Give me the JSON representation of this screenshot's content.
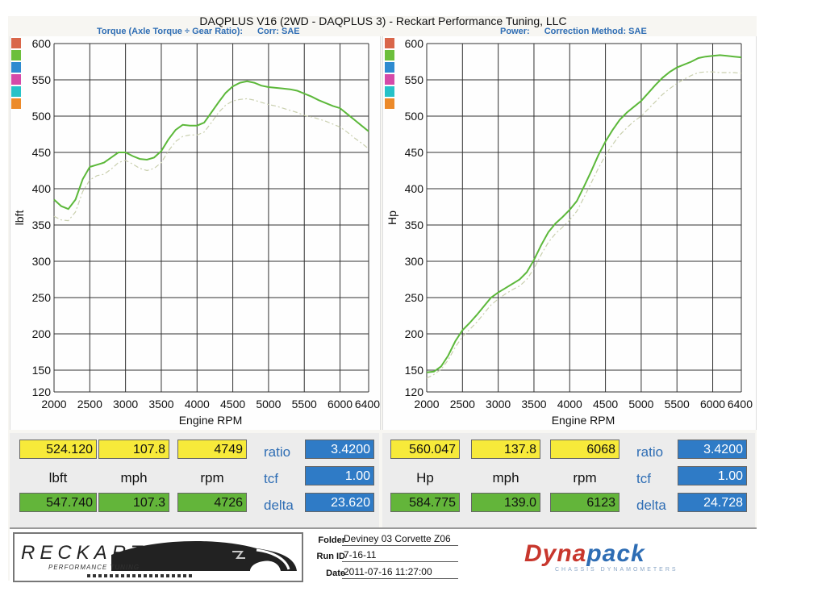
{
  "header": {
    "title": "DAQPLUS V16 (2WD - DAQPLUS 3) - Reckart Performance Tuning, LLC",
    "left_subtitle_a": "Torque (Axle Torque ÷ Gear Ratio):",
    "left_subtitle_b": "Corr: SAE",
    "right_subtitle_a": "Power:",
    "right_subtitle_b": "Correction Method: SAE"
  },
  "legend_swatches": [
    "#d9664a",
    "#6cbf3c",
    "#2e8bd0",
    "#d54aa8",
    "#27c2c8",
    "#ec8a2a"
  ],
  "chart_data": [
    {
      "type": "line",
      "title": "",
      "xlabel": "Engine RPM",
      "ylabel": "lbft",
      "xlim": [
        2000,
        6400
      ],
      "ylim": [
        120,
        600
      ],
      "xticks": [
        2000,
        2500,
        3000,
        3500,
        4000,
        4500,
        5000,
        5500,
        6000,
        6400
      ],
      "yticks": [
        120,
        150,
        200,
        250,
        300,
        350,
        400,
        450,
        500,
        550,
        600
      ],
      "grid": true,
      "series": [
        {
          "color": "#5cb83a",
          "style": "solid",
          "x": [
            2000,
            2100,
            2200,
            2300,
            2400,
            2500,
            2600,
            2700,
            2800,
            2900,
            3000,
            3100,
            3200,
            3300,
            3400,
            3500,
            3600,
            3700,
            3800,
            3900,
            4000,
            4100,
            4200,
            4300,
            4400,
            4500,
            4600,
            4700,
            4800,
            4900,
            5000,
            5100,
            5200,
            5300,
            5400,
            5500,
            5600,
            5700,
            5800,
            5900,
            6000,
            6100,
            6200,
            6300,
            6400
          ],
          "y": [
            385,
            376,
            372,
            385,
            413,
            430,
            433,
            436,
            443,
            450,
            450,
            445,
            441,
            440,
            443,
            452,
            468,
            481,
            488,
            487,
            487,
            491,
            505,
            519,
            532,
            541,
            546,
            548,
            546,
            542,
            540,
            539,
            538,
            537,
            535,
            531,
            527,
            522,
            518,
            514,
            511,
            503,
            495,
            487,
            479
          ]
        },
        {
          "color": "#c9cfae",
          "style": "dashed",
          "x": [
            2000,
            2100,
            2200,
            2300,
            2400,
            2500,
            2600,
            2700,
            2800,
            2900,
            3000,
            3100,
            3200,
            3300,
            3400,
            3500,
            3600,
            3700,
            3800,
            3900,
            4000,
            4100,
            4200,
            4300,
            4400,
            4500,
            4600,
            4700,
            4800,
            4900,
            5000,
            5100,
            5200,
            5300,
            5400,
            5500,
            5600,
            5700,
            5800,
            5900,
            6000,
            6100,
            6200,
            6300,
            6400
          ],
          "y": [
            362,
            357,
            356,
            368,
            396,
            412,
            418,
            420,
            427,
            436,
            439,
            434,
            428,
            425,
            428,
            436,
            452,
            465,
            472,
            474,
            474,
            478,
            491,
            505,
            515,
            521,
            523,
            524,
            522,
            519,
            516,
            514,
            511,
            508,
            505,
            501,
            499,
            496,
            493,
            489,
            485,
            478,
            470,
            463,
            455
          ]
        }
      ]
    },
    {
      "type": "line",
      "title": "",
      "xlabel": "Engine RPM",
      "ylabel": "Hp",
      "xlim": [
        2000,
        6400
      ],
      "ylim": [
        120,
        600
      ],
      "xticks": [
        2000,
        2500,
        3000,
        3500,
        4000,
        4500,
        5000,
        5500,
        6000,
        6400
      ],
      "yticks": [
        120,
        150,
        200,
        250,
        300,
        350,
        400,
        450,
        500,
        550,
        600
      ],
      "grid": true,
      "series": [
        {
          "color": "#5cb83a",
          "style": "solid",
          "x": [
            2000,
            2100,
            2200,
            2300,
            2400,
            2500,
            2600,
            2700,
            2800,
            2900,
            3000,
            3100,
            3200,
            3300,
            3400,
            3500,
            3600,
            3700,
            3800,
            3900,
            4000,
            4100,
            4200,
            4300,
            4400,
            4500,
            4600,
            4700,
            4800,
            4900,
            5000,
            5100,
            5200,
            5300,
            5400,
            5500,
            5600,
            5700,
            5800,
            5900,
            6000,
            6100,
            6200,
            6300,
            6400
          ],
          "y": [
            147,
            148,
            155,
            170,
            190,
            205,
            215,
            226,
            238,
            250,
            257,
            263,
            269,
            275,
            285,
            302,
            322,
            340,
            352,
            361,
            371,
            383,
            403,
            424,
            446,
            465,
            481,
            495,
            505,
            513,
            521,
            532,
            543,
            553,
            561,
            567,
            571,
            575,
            580,
            582,
            583,
            584,
            583,
            582,
            581
          ]
        },
        {
          "color": "#c9cfae",
          "style": "dashed",
          "x": [
            2000,
            2100,
            2200,
            2300,
            2400,
            2500,
            2600,
            2700,
            2800,
            2900,
            3000,
            3100,
            3200,
            3300,
            3400,
            3500,
            3600,
            3700,
            3800,
            3900,
            4000,
            4100,
            4200,
            4300,
            4400,
            4500,
            4600,
            4700,
            4800,
            4900,
            5000,
            5100,
            5200,
            5300,
            5400,
            5500,
            5600,
            5700,
            5800,
            5900,
            6000,
            6100,
            6200,
            6300,
            6400
          ],
          "y": [
            139,
            144,
            151,
            164,
            182,
            196,
            206,
            216,
            228,
            240,
            248,
            255,
            261,
            266,
            275,
            290,
            309,
            326,
            338,
            347,
            357,
            369,
            388,
            408,
            428,
            446,
            461,
            474,
            484,
            493,
            500,
            510,
            520,
            530,
            538,
            545,
            551,
            556,
            560,
            561,
            561,
            560,
            560,
            560,
            559
          ]
        }
      ]
    }
  ],
  "readouts": {
    "left": {
      "row1": [
        "524.120",
        "107.8",
        "4749"
      ],
      "units": [
        "lbft",
        "mph",
        "rpm"
      ],
      "row3": [
        "547.740",
        "107.3",
        "4726"
      ],
      "labels": [
        "ratio",
        "tcf",
        "delta"
      ],
      "blue": [
        "3.4200",
        "1.00",
        "23.620"
      ]
    },
    "right": {
      "row1": [
        "560.047",
        "137.8",
        "6068"
      ],
      "units": [
        "Hp",
        "mph",
        "rpm"
      ],
      "row3": [
        "584.775",
        "139.0",
        "6123"
      ],
      "labels": [
        "ratio",
        "tcf",
        "delta"
      ],
      "blue": [
        "3.4200",
        "1.00",
        "24.728"
      ]
    }
  },
  "footer": {
    "brand": "RECKART",
    "brand_sub": "PERFORMANCE TUNING",
    "folder_label": "Folder",
    "folder_value": "Deviney 03 Corvette Z06",
    "runid_label": "Run ID",
    "runid_value": "7-16-11",
    "date_label": "Date",
    "date_value": "2011-07-16 11:27:00",
    "dyna_a": "Dyna",
    "dyna_b": "pack",
    "dyna_sub": "CHASSIS DYNAMOMETERS"
  }
}
